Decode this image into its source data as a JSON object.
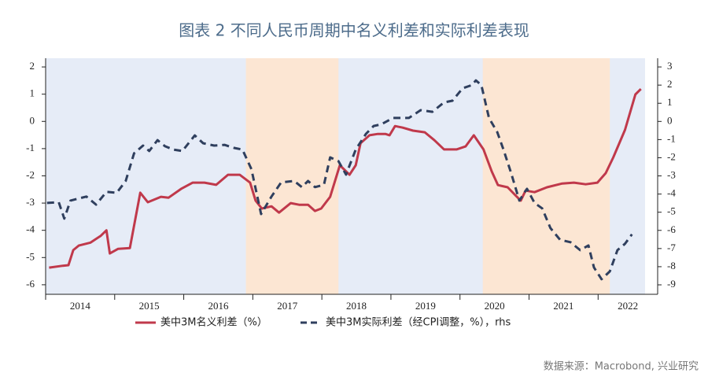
{
  "chart_data": {
    "type": "line",
    "title": "图表 2 不同人民币周期中名义利差和实际利差表现",
    "source": "数据来源：Macrobond, 兴业研究",
    "xlim": [
      2014,
      2022.68
    ],
    "xticks": [
      {
        "value": 2014,
        "label": "2014"
      },
      {
        "value": 2015,
        "label": "2015"
      },
      {
        "value": 2016,
        "label": "2016"
      },
      {
        "value": 2017,
        "label": "2017"
      },
      {
        "value": 2018,
        "label": "2018"
      },
      {
        "value": 2019,
        "label": "2019"
      },
      {
        "value": 2020,
        "label": "2020"
      },
      {
        "value": 2021,
        "label": "2021"
      },
      {
        "value": 2022,
        "label": "2022"
      }
    ],
    "ylim": [
      -6.35,
      2.32
    ],
    "yticks": [
      2,
      1,
      0,
      -1,
      -2,
      -3,
      -4,
      -5,
      -6
    ],
    "y2lim": [
      -9.52,
      3.48
    ],
    "y2ticks": [
      3,
      2,
      1,
      0,
      -1,
      -2,
      -3,
      -4,
      -5,
      -6,
      -7,
      -8,
      -9
    ],
    "plot_background": "#e6ecf7",
    "shaded_regions": [
      {
        "from": 2016.9,
        "to": 2018.24,
        "color": "#fce6d3"
      },
      {
        "from": 2020.33,
        "to": 2022.17,
        "color": "#fce6d3"
      }
    ],
    "legend": "bottom",
    "series": [
      {
        "name": "美中3M名义利差（%）",
        "color": "#c0394b",
        "dash": false,
        "x": [
          2014.05,
          2014.25,
          2014.33,
          2014.4,
          2014.48,
          2014.65,
          2014.8,
          2014.88,
          2014.93,
          2015.05,
          2015.22,
          2015.37,
          2015.48,
          2015.67,
          2015.78,
          2015.96,
          2016.13,
          2016.3,
          2016.47,
          2016.64,
          2016.81,
          2016.96,
          2017.04,
          2017.13,
          2017.27,
          2017.38,
          2017.55,
          2017.67,
          2017.8,
          2017.9,
          2017.99,
          2018.12,
          2018.26,
          2018.4,
          2018.49,
          2018.56,
          2018.69,
          2018.81,
          2018.92,
          2018.98,
          2019.06,
          2019.17,
          2019.32,
          2019.49,
          2019.63,
          2019.77,
          2019.95,
          2020.08,
          2020.2,
          2020.34,
          2020.46,
          2020.55,
          2020.69,
          2020.8,
          2020.88,
          2020.95,
          2021.08,
          2021.26,
          2021.48,
          2021.65,
          2021.82,
          2021.99,
          2022.11,
          2022.22,
          2022.39,
          2022.54,
          2022.62
        ],
        "values": [
          -5.37,
          -5.3,
          -5.28,
          -4.73,
          -4.56,
          -4.45,
          -4.2,
          -4.0,
          -4.85,
          -4.68,
          -4.65,
          -2.62,
          -2.97,
          -2.77,
          -2.8,
          -2.48,
          -2.25,
          -2.25,
          -2.33,
          -1.96,
          -1.96,
          -2.25,
          -2.91,
          -3.2,
          -3.12,
          -3.35,
          -3.0,
          -3.06,
          -3.06,
          -3.29,
          -3.2,
          -2.77,
          -1.61,
          -1.96,
          -1.61,
          -0.8,
          -0.51,
          -0.46,
          -0.46,
          -0.51,
          -0.17,
          -0.23,
          -0.34,
          -0.4,
          -0.69,
          -1.03,
          -1.03,
          -0.92,
          -0.51,
          -1.03,
          -1.84,
          -2.34,
          -2.42,
          -2.71,
          -2.91,
          -2.54,
          -2.6,
          -2.42,
          -2.28,
          -2.25,
          -2.31,
          -2.25,
          -1.9,
          -1.32,
          -0.31,
          0.99,
          1.19
        ]
      },
      {
        "name": "美中3M实际利差（经CPI调整，%），rhs",
        "color": "#2f3f5e",
        "dash": true,
        "axis": "y2",
        "x": [
          2014.02,
          2014.19,
          2014.27,
          2014.36,
          2014.59,
          2014.73,
          2014.88,
          2015.03,
          2015.16,
          2015.28,
          2015.41,
          2015.5,
          2015.62,
          2015.73,
          2015.85,
          2015.98,
          2016.16,
          2016.28,
          2016.44,
          2016.59,
          2016.73,
          2016.85,
          2016.98,
          2017.12,
          2017.27,
          2017.41,
          2017.6,
          2017.71,
          2017.8,
          2017.9,
          2018.03,
          2018.12,
          2018.24,
          2018.35,
          2018.49,
          2018.64,
          2018.75,
          2018.86,
          2019.03,
          2019.26,
          2019.43,
          2019.6,
          2019.77,
          2019.89,
          2020.04,
          2020.17,
          2020.23,
          2020.31,
          2020.42,
          2020.54,
          2020.63,
          2020.74,
          2020.86,
          2020.97,
          2021.08,
          2021.19,
          2021.31,
          2021.45,
          2021.6,
          2021.74,
          2021.86,
          2021.94,
          2022.05,
          2022.17,
          2022.28,
          2022.39,
          2022.49
        ],
        "values": [
          -4.49,
          -4.45,
          -5.35,
          -4.36,
          -4.14,
          -4.58,
          -3.88,
          -3.93,
          -3.28,
          -1.76,
          -1.33,
          -1.63,
          -1.03,
          -1.37,
          -1.55,
          -1.63,
          -0.77,
          -1.2,
          -1.33,
          -1.29,
          -1.46,
          -1.55,
          -2.63,
          -5.1,
          -4.14,
          -3.36,
          -3.28,
          -3.62,
          -3.28,
          -3.62,
          -3.49,
          -1.98,
          -2.19,
          -2.93,
          -1.55,
          -0.68,
          -0.25,
          -0.16,
          0.19,
          0.19,
          0.62,
          0.53,
          1.05,
          1.14,
          1.83,
          2.0,
          2.26,
          2.0,
          0.19,
          -0.59,
          -1.55,
          -2.84,
          -4.36,
          -3.71,
          -4.49,
          -4.79,
          -5.87,
          -6.52,
          -6.65,
          -7.09,
          -6.83,
          -8.04,
          -8.69,
          -8.26,
          -7.09,
          -6.74,
          -6.22
        ]
      }
    ]
  }
}
